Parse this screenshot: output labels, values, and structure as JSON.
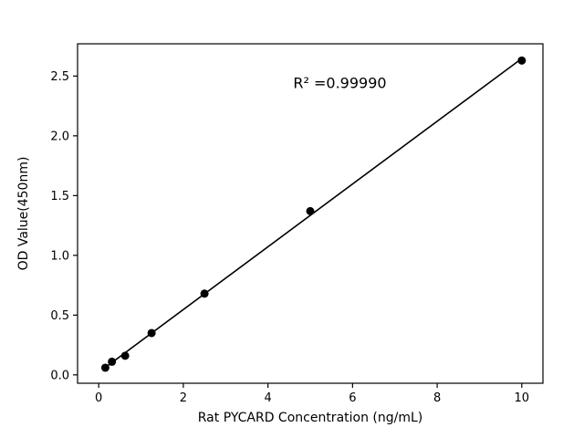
{
  "chart_data": {
    "type": "scatter",
    "title": "",
    "xlabel": "Rat PYCARD Concentration (ng/mL)",
    "ylabel": "OD Value(450nm)",
    "annotation": "R² =0.99990",
    "x": [
      0.156,
      0.3125,
      0.625,
      1.25,
      2.5,
      5,
      10
    ],
    "y": [
      0.06,
      0.11,
      0.16,
      0.35,
      0.68,
      1.37,
      2.63
    ],
    "xticks": [
      0,
      2,
      4,
      6,
      8,
      10
    ],
    "yticks": [
      0.0,
      0.5,
      1.0,
      1.5,
      2.0,
      2.5
    ],
    "xlim": [
      -0.5,
      10.5
    ],
    "ylim": [
      -0.07,
      2.77
    ],
    "legend": null,
    "grid": false,
    "marker_color": "#000000",
    "line_color": "#000000",
    "annotation_pos": [
      5.7,
      2.4
    ]
  }
}
